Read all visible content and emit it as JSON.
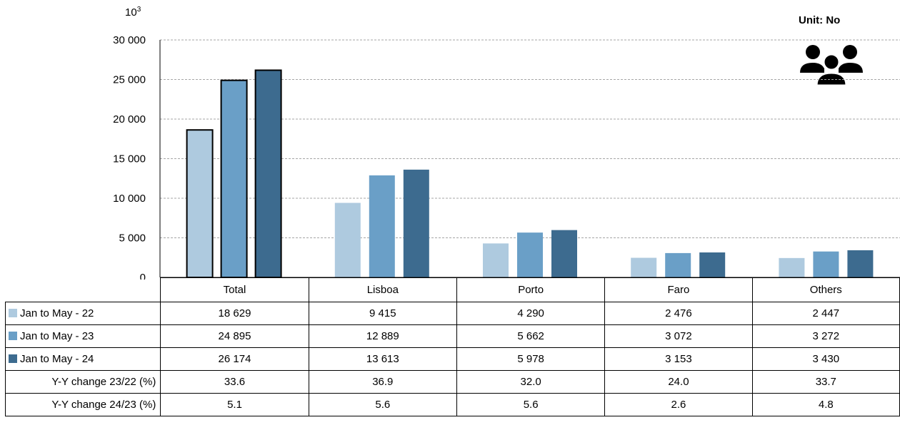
{
  "unit_label": "Unit: No",
  "exponent_base": "10",
  "exponent_power": "3",
  "icon": "people-group-icon",
  "colors": {
    "Jan to May - 22": "#aecadf",
    "Jan to May - 23": "#6a9fc7",
    "Jan to May - 24": "#3d6b8f"
  },
  "chart_data": {
    "type": "bar",
    "categories": [
      "Total",
      "Lisboa",
      "Porto",
      "Faro",
      "Others"
    ],
    "series": [
      {
        "name": "Jan to May - 22",
        "values": [
          18629,
          9415,
          4290,
          2476,
          2447
        ]
      },
      {
        "name": "Jan to May - 23",
        "values": [
          24895,
          12889,
          5662,
          3072,
          3272
        ]
      },
      {
        "name": "Jan to May - 24",
        "values": [
          26174,
          13613,
          5978,
          3153,
          3430
        ]
      }
    ],
    "ylim": [
      0,
      30000
    ],
    "yticks": [
      0,
      5000,
      10000,
      15000,
      20000,
      25000,
      30000
    ],
    "ytick_labels": [
      "0",
      "5 000",
      "10 000",
      "15 000",
      "20 000",
      "25 000",
      "30 000"
    ],
    "grid": true,
    "highlighted_category": "Total"
  },
  "table": {
    "columns": [
      "Total",
      "Lisboa",
      "Porto",
      "Faro",
      "Others"
    ],
    "rows": [
      {
        "label": "Jan to May - 22",
        "values": [
          "18 629",
          "9 415",
          "4 290",
          "2 476",
          "2 447"
        ]
      },
      {
        "label": "Jan to May - 23",
        "values": [
          "24 895",
          "12 889",
          "5 662",
          "3 072",
          "3 272"
        ]
      },
      {
        "label": "Jan to May - 24",
        "values": [
          "26 174",
          "13 613",
          "5 978",
          "3 153",
          "3 430"
        ]
      },
      {
        "label": "Y-Y change 23/22 (%)",
        "values": [
          "33.6",
          "36.9",
          "32.0",
          "24.0",
          "33.7"
        ]
      },
      {
        "label": "Y-Y change 24/23 (%)",
        "values": [
          "5.1",
          "5.6",
          "5.6",
          "2.6",
          "4.8"
        ]
      }
    ]
  }
}
